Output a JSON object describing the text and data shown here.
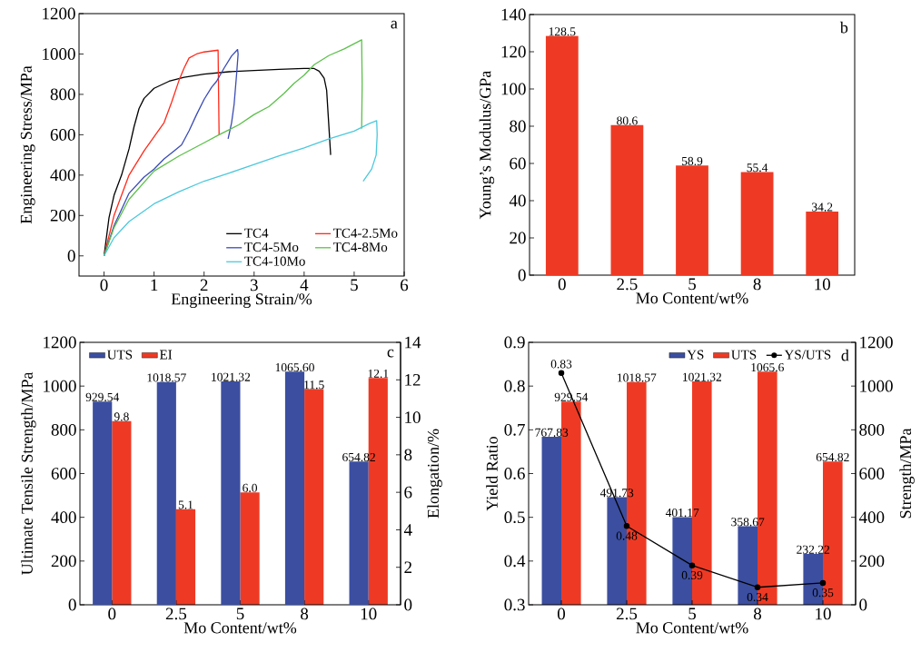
{
  "chart_data": [
    {
      "type": "line",
      "xlabel": "Engineering Strain/%",
      "ylabel": "Engineering Stress/MPa",
      "xlim": [
        -0.5,
        6
      ],
      "ylim": [
        -100,
        1200
      ],
      "xticks": [
        0,
        1,
        2,
        3,
        4,
        5,
        6
      ],
      "yticks": [
        0,
        200,
        400,
        600,
        800,
        1000,
        1200
      ],
      "legend": "bottom right",
      "annotations": [
        "a"
      ],
      "series": [
        {
          "name": "TC4",
          "color": "#000000",
          "x": [
            0,
            0.1,
            0.2,
            0.35,
            0.5,
            0.6,
            0.7,
            0.8,
            1.0,
            1.3,
            1.6,
            2.0,
            2.5,
            3.0,
            3.5,
            4.0,
            4.2,
            4.3,
            4.4,
            4.45,
            4.48,
            4.53
          ],
          "values": [
            0,
            190,
            300,
            400,
            530,
            640,
            730,
            780,
            830,
            865,
            885,
            900,
            912,
            918,
            924,
            928,
            928,
            915,
            880,
            820,
            700,
            500
          ]
        },
        {
          "name": "TC4-2.5Mo",
          "color": "#ff2a1a",
          "x": [
            0,
            0.2,
            0.5,
            0.8,
            1.0,
            1.2,
            1.35,
            1.5,
            1.6,
            1.7,
            1.85,
            2.0,
            2.28,
            2.29,
            2.3
          ],
          "values": [
            0,
            200,
            400,
            520,
            590,
            660,
            760,
            870,
            930,
            980,
            1000,
            1010,
            1019,
            800,
            600
          ]
        },
        {
          "name": "TC4-5Mo",
          "color": "#3a4bb5",
          "x": [
            0,
            0.2,
            0.5,
            0.8,
            1.0,
            1.2,
            1.4,
            1.55,
            1.7,
            1.85,
            2.0,
            2.15,
            2.25,
            2.4,
            2.55,
            2.67,
            2.68,
            2.65,
            2.6,
            2.55,
            2.48
          ],
          "values": [
            0,
            150,
            310,
            390,
            430,
            480,
            520,
            550,
            620,
            700,
            775,
            835,
            865,
            930,
            990,
            1022,
            1000,
            900,
            750,
            660,
            580
          ]
        },
        {
          "name": "TC4-8Mo",
          "color": "#5cc04a",
          "x": [
            0,
            0.2,
            0.5,
            1.0,
            1.5,
            2.0,
            2.3,
            2.7,
            3.0,
            3.3,
            3.6,
            3.8,
            4.0,
            4.2,
            4.5,
            4.8,
            5.15,
            5.16,
            5.15
          ],
          "values": [
            0,
            140,
            280,
            420,
            495,
            560,
            600,
            650,
            700,
            740,
            805,
            855,
            895,
            947,
            993,
            1025,
            1070,
            850,
            630
          ]
        },
        {
          "name": "TC4-10Mo",
          "color": "#4cc8dc",
          "x": [
            0,
            0.2,
            0.5,
            1.0,
            1.5,
            2.0,
            2.5,
            3.0,
            3.5,
            4.0,
            4.5,
            5.0,
            5.3,
            5.45,
            5.46,
            5.44,
            5.35,
            5.18
          ],
          "values": [
            0,
            90,
            170,
            258,
            318,
            370,
            410,
            453,
            495,
            535,
            580,
            618,
            655,
            670,
            600,
            500,
            430,
            370
          ]
        }
      ]
    },
    {
      "type": "bar",
      "xlabel": "Mo Content/wt%",
      "ylabel": "Young’s Modulus/GPa",
      "categories": [
        "0",
        "2.5",
        "5",
        "8",
        "10"
      ],
      "ylim": [
        0,
        140
      ],
      "yticks": [
        0,
        20,
        40,
        60,
        80,
        100,
        120,
        140
      ],
      "data_labels": true,
      "annotations": [
        "b"
      ],
      "series": [
        {
          "color": "#ee3a24",
          "values": [
            128.5,
            80.6,
            58.9,
            55.4,
            34.2
          ]
        }
      ]
    },
    {
      "type": "bar",
      "xlabel": "Mo Content/wt%",
      "ylabel": "Ultimate Tensile Strength/MPa",
      "y2label": "Elongation/%",
      "categories": [
        "0",
        "2.5",
        "5",
        "8",
        "10"
      ],
      "ylim": [
        0,
        1200
      ],
      "yticks": [
        0,
        200,
        400,
        600,
        800,
        1000,
        1200
      ],
      "y2lim": [
        0,
        14
      ],
      "y2ticks": [
        0,
        2,
        4,
        6,
        8,
        10,
        12,
        14
      ],
      "legend": "top left",
      "annotations": [
        "c"
      ],
      "series": [
        {
          "name": "UTS",
          "color": "#3b4ea0",
          "axis": "y",
          "values": [
            929.54,
            1018.57,
            1021.32,
            1065.6,
            654.82
          ],
          "value_labels": [
            "929.54",
            "1018.57",
            "1021.32",
            "1065.60",
            "654.82"
          ]
        },
        {
          "name": "EI",
          "color": "#ee3a24",
          "axis": "y2",
          "values": [
            9.8,
            5.1,
            6.0,
            11.5,
            12.1
          ],
          "value_labels": [
            "9.8",
            "5.1",
            "6.0",
            "11.5",
            "12.1"
          ]
        }
      ]
    },
    {
      "type": "bar",
      "xlabel": "Mo Content/wt%",
      "ylabel": "Yield Ratio",
      "y2label": "Strength/MPa",
      "categories": [
        "0",
        "2.5",
        "5",
        "8",
        "10"
      ],
      "ylim": [
        0.3,
        0.9
      ],
      "yticks": [
        0.3,
        0.4,
        0.5,
        0.6,
        0.7,
        0.8,
        0.9
      ],
      "y2lim": [
        0,
        1200
      ],
      "y2ticks": [
        0,
        200,
        400,
        600,
        800,
        1000,
        1200
      ],
      "legend": "top right",
      "data_labels": true,
      "annotations": [
        "d"
      ],
      "series": [
        {
          "name": "YS",
          "color": "#3b4ea0",
          "axis": "y2",
          "values": [
            767.83,
            491.73,
            401.17,
            358.67,
            232.22
          ]
        },
        {
          "name": "UTS",
          "color": "#ee3a24",
          "axis": "y2",
          "values": [
            929.54,
            1018.57,
            1021.32,
            1065.6,
            654.82
          ]
        },
        {
          "name": "YS/UTS",
          "type": "line",
          "color": "#000000",
          "axis": "y",
          "marker": "circle",
          "values": [
            0.83,
            0.48,
            0.39,
            0.34,
            0.35
          ]
        }
      ]
    }
  ]
}
